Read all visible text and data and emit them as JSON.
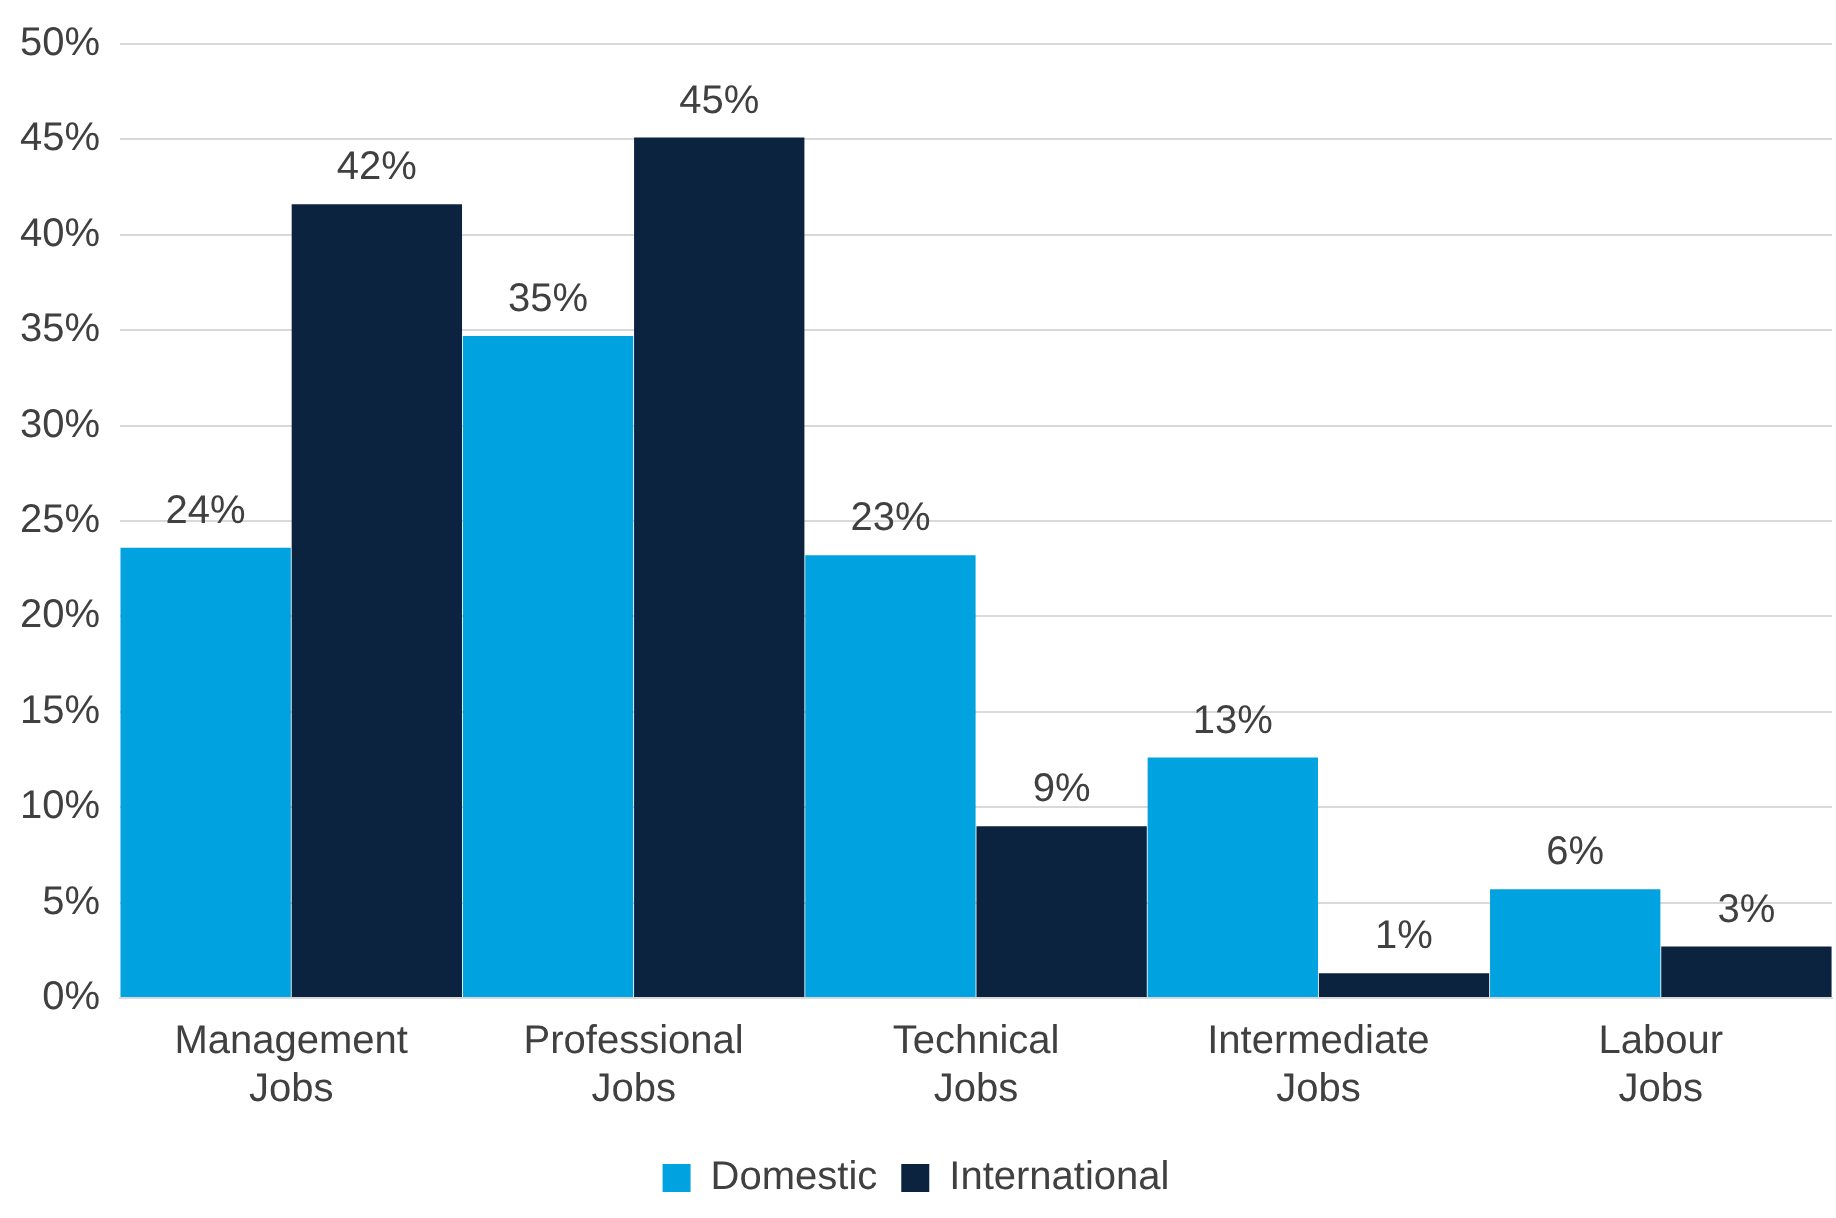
{
  "chart_data": {
    "type": "bar",
    "categories": [
      "Management Jobs",
      "Professional Jobs",
      "Technical Jobs",
      "Intermediate Jobs",
      "Labour Jobs"
    ],
    "series": [
      {
        "name": "Domestic",
        "color": "#00a3e0",
        "values": [
          23.6,
          34.7,
          23.2,
          12.6,
          5.7
        ],
        "value_labels": [
          "24%",
          "35%",
          "23%",
          "13%",
          "6%"
        ]
      },
      {
        "name": "International",
        "color": "#0c2340",
        "values": [
          41.6,
          45.1,
          9,
          1.3,
          2.7
        ],
        "value_labels": [
          "42%",
          "45%",
          "9%",
          "1%",
          "3%"
        ]
      }
    ],
    "ylim": [
      0,
      50
    ],
    "yticks": [
      {
        "value": 0,
        "label": "0%"
      },
      {
        "value": 5,
        "label": "5%"
      },
      {
        "value": 10,
        "label": "10%"
      },
      {
        "value": 15,
        "label": "15%"
      },
      {
        "value": 20,
        "label": "20%"
      },
      {
        "value": 25,
        "label": "25%"
      },
      {
        "value": 30,
        "label": "30%"
      },
      {
        "value": 35,
        "label": "35%"
      },
      {
        "value": 40,
        "label": "40%"
      },
      {
        "value": 45,
        "label": "45%"
      },
      {
        "value": 50,
        "label": "50%"
      }
    ],
    "grid": "y",
    "legend": "bottom"
  }
}
